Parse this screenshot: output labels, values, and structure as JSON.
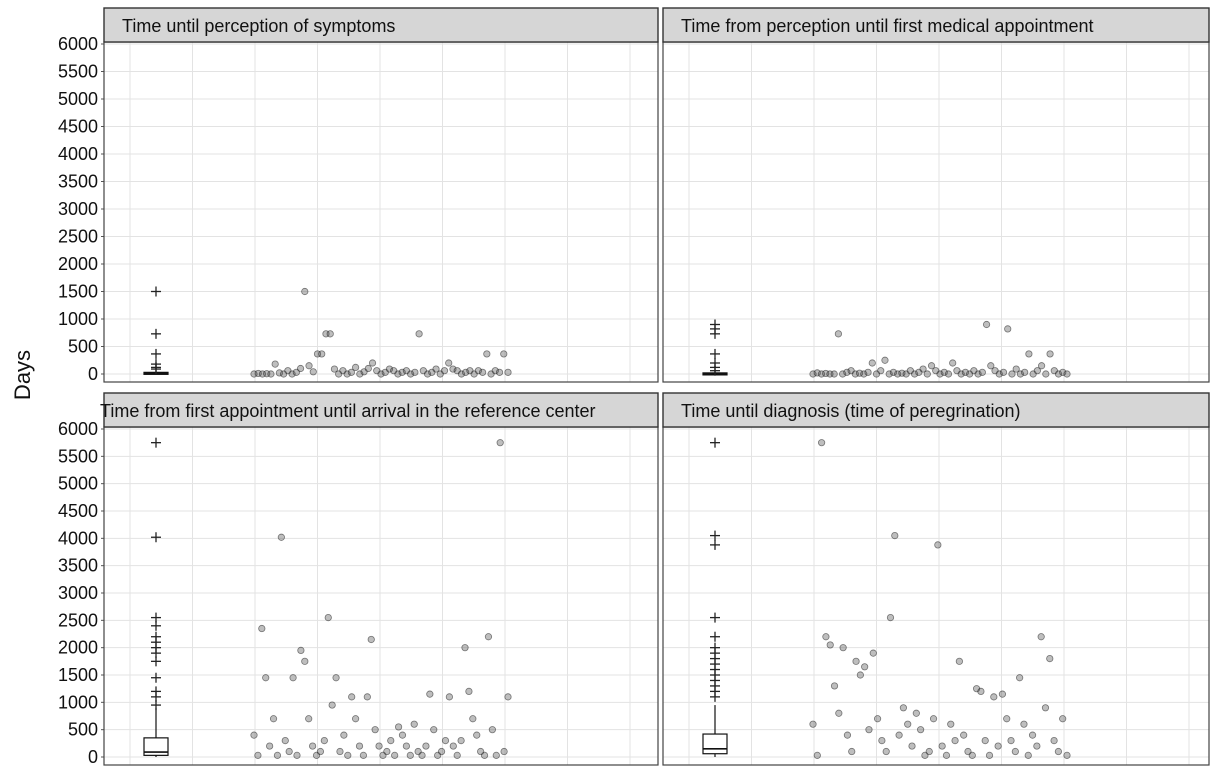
{
  "y_axis_title": "Days",
  "chart_data": [
    {
      "type": "scatter",
      "title": "Time until perception of symptoms",
      "ylabel": "Days",
      "ylim": [
        0,
        6000
      ],
      "yticks": [
        0,
        500,
        1000,
        1500,
        2000,
        2500,
        3000,
        3500,
        4000,
        4500,
        5000,
        5500,
        6000
      ],
      "grid": true,
      "box": {
        "min": 0,
        "q1": 0,
        "median": 15,
        "q3": 30,
        "max": 30
      },
      "outliers": [
        1500,
        730,
        365,
        180,
        120,
        90
      ],
      "points": [
        [
          0,
          0
        ],
        [
          0.3,
          10
        ],
        [
          0.6,
          0
        ],
        [
          0.9,
          5
        ],
        [
          1.2,
          0
        ],
        [
          1.5,
          180
        ],
        [
          1.8,
          20
        ],
        [
          2.1,
          0
        ],
        [
          2.4,
          60
        ],
        [
          2.7,
          0
        ],
        [
          3.0,
          30
        ],
        [
          3.3,
          100
        ],
        [
          3.6,
          1500
        ],
        [
          3.9,
          150
        ],
        [
          4.2,
          40
        ],
        [
          4.5,
          365
        ],
        [
          4.8,
          365
        ],
        [
          5.1,
          730
        ],
        [
          5.4,
          730
        ],
        [
          5.7,
          90
        ],
        [
          6.0,
          0
        ],
        [
          6.3,
          60
        ],
        [
          6.6,
          0
        ],
        [
          6.9,
          30
        ],
        [
          7.2,
          120
        ],
        [
          7.5,
          0
        ],
        [
          7.8,
          40
        ],
        [
          8.1,
          100
        ],
        [
          8.4,
          200
        ],
        [
          8.7,
          60
        ],
        [
          9.0,
          0
        ],
        [
          9.3,
          30
        ],
        [
          9.6,
          90
        ],
        [
          9.9,
          60
        ],
        [
          10.2,
          0
        ],
        [
          10.5,
          30
        ],
        [
          10.8,
          60
        ],
        [
          11.1,
          0
        ],
        [
          11.4,
          30
        ],
        [
          11.7,
          730
        ],
        [
          12.0,
          60
        ],
        [
          12.3,
          0
        ],
        [
          12.6,
          30
        ],
        [
          12.9,
          90
        ],
        [
          13.2,
          0
        ],
        [
          13.5,
          60
        ],
        [
          13.8,
          200
        ],
        [
          14.1,
          90
        ],
        [
          14.4,
          60
        ],
        [
          14.7,
          0
        ],
        [
          15.0,
          30
        ],
        [
          15.3,
          60
        ],
        [
          15.6,
          0
        ],
        [
          15.9,
          60
        ],
        [
          16.2,
          30
        ],
        [
          16.5,
          365
        ],
        [
          16.8,
          0
        ],
        [
          17.1,
          60
        ],
        [
          17.4,
          30
        ],
        [
          17.7,
          365
        ],
        [
          18.0,
          30
        ]
      ]
    },
    {
      "type": "scatter",
      "title": "Time from perception until first medical appointment",
      "ylabel": "Days",
      "ylim": [
        0,
        6000
      ],
      "yticks": [
        0,
        500,
        1000,
        1500,
        2000,
        2500,
        3000,
        3500,
        4000,
        4500,
        5000,
        5500,
        6000
      ],
      "grid": true,
      "box": {
        "min": 0,
        "q1": 0,
        "median": 5,
        "q3": 20,
        "max": 30
      },
      "outliers": [
        900,
        820,
        730,
        365,
        200,
        120,
        60
      ],
      "points": [
        [
          0,
          0
        ],
        [
          0.3,
          20
        ],
        [
          0.6,
          0
        ],
        [
          0.9,
          10
        ],
        [
          1.2,
          0
        ],
        [
          1.5,
          0
        ],
        [
          1.8,
          730
        ],
        [
          2.1,
          0
        ],
        [
          2.4,
          30
        ],
        [
          2.7,
          60
        ],
        [
          3.0,
          0
        ],
        [
          3.3,
          15
        ],
        [
          3.6,
          0
        ],
        [
          3.9,
          30
        ],
        [
          4.2,
          200
        ],
        [
          4.5,
          0
        ],
        [
          4.8,
          60
        ],
        [
          5.1,
          250
        ],
        [
          5.4,
          0
        ],
        [
          5.7,
          30
        ],
        [
          6.0,
          0
        ],
        [
          6.3,
          15
        ],
        [
          6.6,
          0
        ],
        [
          6.9,
          60
        ],
        [
          7.2,
          0
        ],
        [
          7.5,
          30
        ],
        [
          7.8,
          90
        ],
        [
          8.1,
          0
        ],
        [
          8.4,
          150
        ],
        [
          8.7,
          60
        ],
        [
          9.0,
          0
        ],
        [
          9.3,
          30
        ],
        [
          9.6,
          0
        ],
        [
          9.9,
          200
        ],
        [
          10.2,
          60
        ],
        [
          10.5,
          0
        ],
        [
          10.8,
          30
        ],
        [
          11.1,
          0
        ],
        [
          11.4,
          60
        ],
        [
          11.7,
          0
        ],
        [
          12.0,
          30
        ],
        [
          12.3,
          900
        ],
        [
          12.6,
          150
        ],
        [
          12.9,
          60
        ],
        [
          13.2,
          0
        ],
        [
          13.5,
          30
        ],
        [
          13.8,
          820
        ],
        [
          14.1,
          0
        ],
        [
          14.4,
          90
        ],
        [
          14.7,
          0
        ],
        [
          15.0,
          30
        ],
        [
          15.3,
          365
        ],
        [
          15.6,
          0
        ],
        [
          15.9,
          60
        ],
        [
          16.2,
          150
        ],
        [
          16.5,
          0
        ],
        [
          16.8,
          365
        ],
        [
          17.1,
          60
        ],
        [
          17.4,
          0
        ],
        [
          17.7,
          30
        ],
        [
          18.0,
          0
        ]
      ]
    },
    {
      "type": "scatter",
      "title": "Time from first appointment until arrival in the reference center",
      "ylabel": "Days",
      "ylim": [
        0,
        6000
      ],
      "yticks": [
        0,
        500,
        1000,
        1500,
        2000,
        2500,
        3000,
        3500,
        4000,
        4500,
        5000,
        5500,
        6000
      ],
      "grid": true,
      "box": {
        "min": 0,
        "q1": 30,
        "median": 90,
        "q3": 350,
        "max": 900
      },
      "outliers": [
        5750,
        4020,
        2550,
        2400,
        2200,
        2100,
        2000,
        1900,
        1750,
        1450,
        1200,
        1100,
        950
      ],
      "points": [
        [
          0,
          400
        ],
        [
          0.2,
          30
        ],
        [
          0.4,
          2350
        ],
        [
          0.6,
          1450
        ],
        [
          0.8,
          200
        ],
        [
          1.0,
          700
        ],
        [
          1.2,
          30
        ],
        [
          1.4,
          4020
        ],
        [
          1.6,
          300
        ],
        [
          1.8,
          100
        ],
        [
          2.0,
          1450
        ],
        [
          2.2,
          30
        ],
        [
          2.4,
          1950
        ],
        [
          2.6,
          1750
        ],
        [
          2.8,
          700
        ],
        [
          3.0,
          200
        ],
        [
          3.2,
          30
        ],
        [
          3.4,
          100
        ],
        [
          3.6,
          300
        ],
        [
          3.8,
          2550
        ],
        [
          4.0,
          950
        ],
        [
          4.2,
          1450
        ],
        [
          4.4,
          100
        ],
        [
          4.6,
          400
        ],
        [
          4.8,
          30
        ],
        [
          5.0,
          1100
        ],
        [
          5.2,
          700
        ],
        [
          5.4,
          200
        ],
        [
          5.6,
          30
        ],
        [
          5.8,
          1100
        ],
        [
          6.0,
          2150
        ],
        [
          6.2,
          500
        ],
        [
          6.4,
          200
        ],
        [
          6.6,
          30
        ],
        [
          6.8,
          100
        ],
        [
          7.0,
          300
        ],
        [
          7.2,
          30
        ],
        [
          7.4,
          550
        ],
        [
          7.6,
          400
        ],
        [
          7.8,
          200
        ],
        [
          8.0,
          30
        ],
        [
          8.2,
          600
        ],
        [
          8.4,
          100
        ],
        [
          8.6,
          30
        ],
        [
          8.8,
          200
        ],
        [
          9.0,
          1150
        ],
        [
          9.2,
          500
        ],
        [
          9.4,
          30
        ],
        [
          9.6,
          100
        ],
        [
          9.8,
          300
        ],
        [
          10.0,
          1100
        ],
        [
          10.2,
          200
        ],
        [
          10.4,
          30
        ],
        [
          10.6,
          300
        ],
        [
          10.8,
          2000
        ],
        [
          11.0,
          1200
        ],
        [
          11.2,
          700
        ],
        [
          11.4,
          400
        ],
        [
          11.6,
          100
        ],
        [
          11.8,
          30
        ],
        [
          12.0,
          2200
        ],
        [
          12.2,
          500
        ],
        [
          12.4,
          30
        ],
        [
          12.6,
          5750
        ],
        [
          12.8,
          100
        ],
        [
          13.0,
          1100
        ]
      ]
    },
    {
      "type": "scatter",
      "title": "Time until diagnosis (time of peregrination)",
      "ylabel": "Days",
      "ylim": [
        0,
        6000
      ],
      "yticks": [
        0,
        500,
        1000,
        1500,
        2000,
        2500,
        3000,
        3500,
        4000,
        4500,
        5000,
        5500,
        6000
      ],
      "grid": true,
      "box": {
        "min": 0,
        "q1": 60,
        "median": 150,
        "q3": 420,
        "max": 950
      },
      "outliers": [
        5750,
        4050,
        3880,
        2550,
        2200,
        2000,
        1900,
        1800,
        1700,
        1600,
        1500,
        1400,
        1300,
        1200,
        1100
      ],
      "points": [
        [
          0,
          600
        ],
        [
          0.2,
          30
        ],
        [
          0.4,
          5750
        ],
        [
          0.6,
          2200
        ],
        [
          0.8,
          2050
        ],
        [
          1.0,
          1300
        ],
        [
          1.2,
          800
        ],
        [
          1.4,
          2000
        ],
        [
          1.6,
          400
        ],
        [
          1.8,
          100
        ],
        [
          2.0,
          1750
        ],
        [
          2.2,
          1500
        ],
        [
          2.4,
          1650
        ],
        [
          2.6,
          500
        ],
        [
          2.8,
          1900
        ],
        [
          3.0,
          700
        ],
        [
          3.2,
          300
        ],
        [
          3.4,
          100
        ],
        [
          3.6,
          2550
        ],
        [
          3.8,
          4050
        ],
        [
          4.0,
          400
        ],
        [
          4.2,
          900
        ],
        [
          4.4,
          600
        ],
        [
          4.6,
          200
        ],
        [
          4.8,
          800
        ],
        [
          5.0,
          500
        ],
        [
          5.2,
          30
        ],
        [
          5.4,
          100
        ],
        [
          5.6,
          700
        ],
        [
          5.8,
          3880
        ],
        [
          6.0,
          200
        ],
        [
          6.2,
          30
        ],
        [
          6.4,
          600
        ],
        [
          6.6,
          300
        ],
        [
          6.8,
          1750
        ],
        [
          7.0,
          400
        ],
        [
          7.2,
          100
        ],
        [
          7.4,
          30
        ],
        [
          7.6,
          1250
        ],
        [
          7.8,
          1200
        ],
        [
          8.0,
          300
        ],
        [
          8.2,
          30
        ],
        [
          8.4,
          1100
        ],
        [
          8.6,
          200
        ],
        [
          8.8,
          1150
        ],
        [
          9.0,
          700
        ],
        [
          9.2,
          300
        ],
        [
          9.4,
          100
        ],
        [
          9.6,
          1450
        ],
        [
          9.8,
          600
        ],
        [
          10.0,
          30
        ],
        [
          10.2,
          400
        ],
        [
          10.4,
          200
        ],
        [
          10.6,
          2200
        ],
        [
          10.8,
          900
        ],
        [
          11.0,
          1800
        ],
        [
          11.2,
          300
        ],
        [
          11.4,
          100
        ],
        [
          11.6,
          700
        ],
        [
          11.8,
          30
        ]
      ]
    }
  ]
}
